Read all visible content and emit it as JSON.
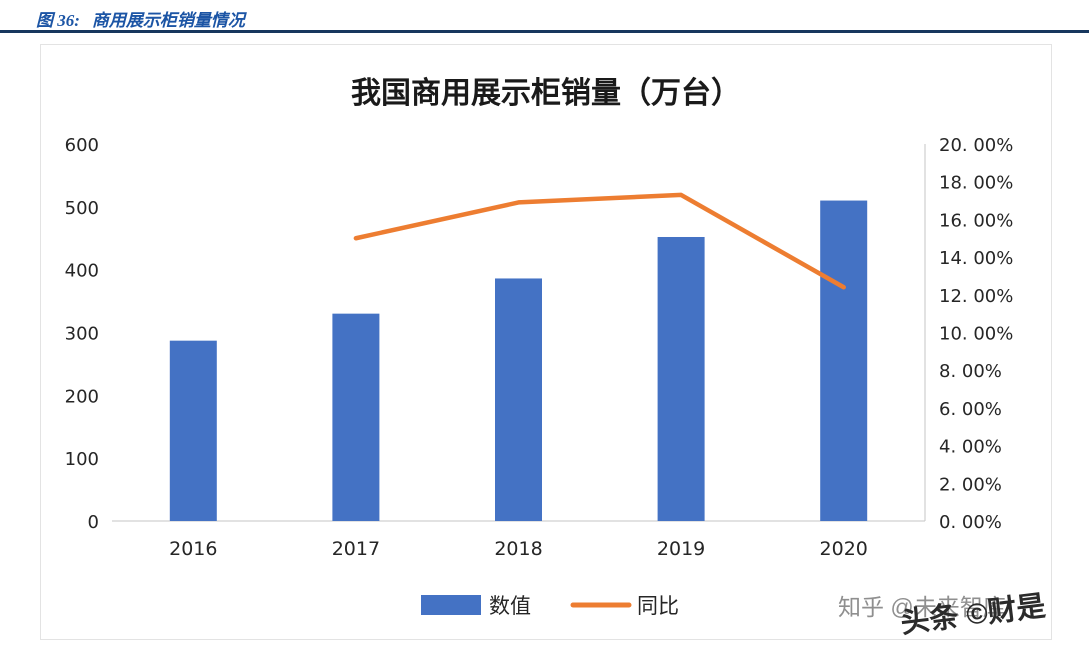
{
  "header": {
    "figure_label": "图 36:",
    "figure_title": "商用展示柜销量情况"
  },
  "colors": {
    "bar_blue": "#4472C4",
    "line_orange": "#ED7D31",
    "header_blue": "#1C55A5",
    "rule_navy": "#17375E"
  },
  "watermarks": {
    "zhihu": "知乎 @未来智库",
    "toutiao": "头条 ©财是"
  },
  "chart_data": {
    "type": "bar+line",
    "title": "我国商用展示柜销量（万台）",
    "categories": [
      "2016",
      "2017",
      "2018",
      "2019",
      "2020"
    ],
    "series": [
      {
        "name": "数值",
        "type": "bar",
        "axis": "left",
        "color": "#4472C4",
        "values": [
          287,
          330,
          386,
          452,
          510
        ]
      },
      {
        "name": "同比",
        "type": "line",
        "axis": "right",
        "color": "#ED7D31",
        "values": [
          null,
          15.0,
          16.9,
          17.3,
          12.4
        ]
      }
    ],
    "left_axis": {
      "min": 0,
      "max": 600,
      "step": 100,
      "labels": [
        "0",
        "100",
        "200",
        "300",
        "400",
        "500",
        "600"
      ]
    },
    "right_axis": {
      "min": 0,
      "max": 20,
      "step": 2,
      "labels": [
        "0. 00%",
        "2. 00%",
        "4. 00%",
        "6. 00%",
        "8. 00%",
        "10. 00%",
        "12. 00%",
        "14. 00%",
        "16. 00%",
        "18. 00%",
        "20. 00%"
      ]
    },
    "legend": [
      {
        "label": "数值",
        "marker": "rect",
        "color": "#4472C4"
      },
      {
        "label": "同比",
        "marker": "line",
        "color": "#ED7D31"
      }
    ],
    "grid": false,
    "legend_position": "bottom"
  }
}
